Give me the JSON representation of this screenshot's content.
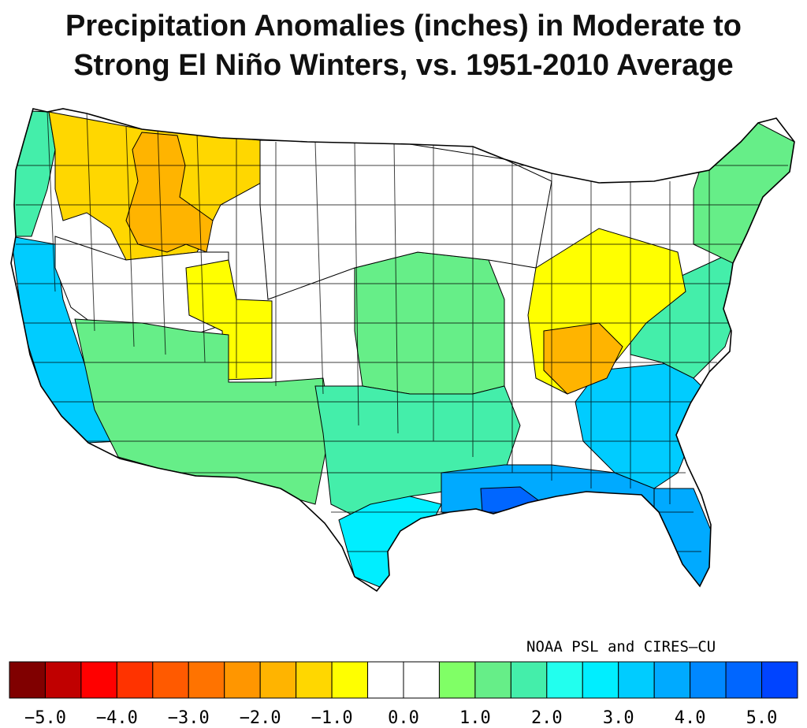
{
  "title": {
    "line1": "Precipitation Anomalies (inches) in Moderate to",
    "line2": "Strong El Niño Winters, vs. 1951-2010 Average"
  },
  "credit": "NOAA PSL and CIRES–CU",
  "colorbar": {
    "colors": [
      "#800000",
      "#c00000",
      "#ff0000",
      "#ff3300",
      "#ff5a00",
      "#ff7300",
      "#ff9600",
      "#ffb400",
      "#ffd700",
      "#ffff00",
      "#ffffff",
      "#ffffff",
      "#80ff66",
      "#66ee88",
      "#44eeaa",
      "#22ffee",
      "#00eeff",
      "#00ccff",
      "#00aaff",
      "#0088ff",
      "#0066ff",
      "#0044ff"
    ],
    "tick_values": [
      -5.0,
      -4.0,
      -3.0,
      -2.0,
      -1.0,
      0.0,
      1.0,
      2.0,
      3.0,
      4.0,
      5.0
    ],
    "tick_labels": [
      "−5.0",
      "−4.0",
      "−3.0",
      "−2.0",
      "−1.0",
      "0.0",
      "1.0",
      "2.0",
      "3.0",
      "4.0",
      "5.0"
    ]
  },
  "regions": [
    {
      "name": "pacific-northwest-coast",
      "anomaly": 1.75
    },
    {
      "name": "northern-rockies",
      "anomaly": -1.5
    },
    {
      "name": "idaho-montana-dry-core",
      "anomaly": -2.0
    },
    {
      "name": "california-coast",
      "anomaly": 3.0
    },
    {
      "name": "great-basin",
      "anomaly": 0.0
    },
    {
      "name": "utah-colorado-dry",
      "anomaly": -1.0
    },
    {
      "name": "southwest",
      "anomaly": 1.25
    },
    {
      "name": "southern-plains",
      "anomaly": 1.5
    },
    {
      "name": "central-plains",
      "anomaly": 1.25
    },
    {
      "name": "texas-coast",
      "anomaly": 2.75
    },
    {
      "name": "gulf-coast",
      "anomaly": 3.5
    },
    {
      "name": "louisiana-delta",
      "anomaly": 4.75
    },
    {
      "name": "florida",
      "anomaly": 3.75
    },
    {
      "name": "carolinas",
      "anomaly": 3.25
    },
    {
      "name": "mid-atlantic",
      "anomaly": 1.75
    },
    {
      "name": "ohio-valley",
      "anomaly": -1.0
    },
    {
      "name": "tennessee-valley",
      "anomaly": -1.75
    },
    {
      "name": "northeast",
      "anomaly": 1.25
    },
    {
      "name": "upper-midwest",
      "anomaly": 0.0
    }
  ]
}
